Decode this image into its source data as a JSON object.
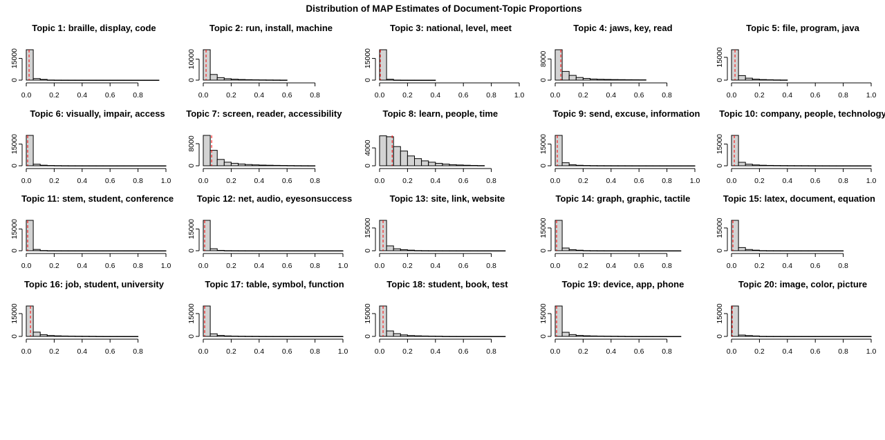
{
  "figure_title": "Distribution of MAP Estimates of Document-Topic Proportions",
  "colors": {
    "bar_fill": "#d3d3d3",
    "bar_stroke": "#000000",
    "reference_line": "#ff0000"
  },
  "chart_data": [
    {
      "type": "bar",
      "title": "Topic 1: braille, display, code",
      "x_ticks": [
        "0.0",
        "0.2",
        "0.4",
        "0.6",
        "0.8"
      ],
      "xlim": [
        0,
        0.95
      ],
      "y_ticks": [
        "0",
        "15000"
      ],
      "ylim": [
        0,
        21000
      ],
      "bin_width": 0.05,
      "counts": [
        21000,
        1100,
        500,
        90,
        35,
        20,
        15,
        12,
        10,
        10,
        8,
        7,
        6,
        5,
        4,
        4,
        3,
        2,
        1
      ],
      "mean_line": 0.02
    },
    {
      "type": "bar",
      "title": "Topic 2: run, install, machine",
      "x_ticks": [
        "0.0",
        "0.2",
        "0.4",
        "0.6",
        "0.8"
      ],
      "xlim": [
        0,
        0.95
      ],
      "y_ticks": [
        "0",
        "10000"
      ],
      "ylim": [
        0,
        14500
      ],
      "bin_width": 0.05,
      "counts": [
        14500,
        2700,
        1200,
        700,
        450,
        300,
        220,
        160,
        120,
        90,
        60,
        30
      ],
      "mean_line": 0.02
    },
    {
      "type": "bar",
      "title": "Topic 3: national, level, meet",
      "x_ticks": [
        "0.0",
        "0.2",
        "0.4",
        "0.6",
        "0.8",
        "1.0"
      ],
      "xlim": [
        0,
        1.0
      ],
      "y_ticks": [
        "0",
        "15000"
      ],
      "ylim": [
        0,
        21000
      ],
      "bin_width": 0.05,
      "counts": [
        21000,
        600,
        60,
        15,
        8,
        5,
        3,
        2
      ],
      "mean_line": 0.005
    },
    {
      "type": "bar",
      "title": "Topic 4: jaws, key, read",
      "x_ticks": [
        "0.0",
        "0.2",
        "0.4",
        "0.6",
        "0.8"
      ],
      "xlim": [
        0,
        0.95
      ],
      "y_ticks": [
        "0",
        "8000"
      ],
      "ylim": [
        0,
        11500
      ],
      "bin_width": 0.05,
      "counts": [
        11500,
        3300,
        1800,
        1000,
        650,
        420,
        320,
        260,
        220,
        190,
        160,
        140,
        120
      ],
      "mean_line": 0.04
    },
    {
      "type": "bar",
      "title": "Topic 5: file, program, java",
      "x_ticks": [
        "0.0",
        "0.2",
        "0.4",
        "0.6",
        "0.8",
        "1.0"
      ],
      "xlim": [
        0,
        1.0
      ],
      "y_ticks": [
        "0",
        "15000"
      ],
      "ylim": [
        0,
        20000
      ],
      "bin_width": 0.05,
      "counts": [
        20000,
        3000,
        1300,
        650,
        380,
        250,
        150,
        100
      ],
      "mean_line": 0.025
    },
    {
      "type": "bar",
      "title": "Topic 6: visually, impair, access",
      "x_ticks": [
        "0.0",
        "0.2",
        "0.4",
        "0.6",
        "0.8",
        "1.0"
      ],
      "xlim": [
        0,
        1.0
      ],
      "y_ticks": [
        "0",
        "15000"
      ],
      "ylim": [
        0,
        21000
      ],
      "bin_width": 0.05,
      "counts": [
        21000,
        1100,
        400,
        200,
        120,
        60,
        40,
        30,
        25,
        20,
        15,
        12,
        10,
        9,
        8,
        7,
        6,
        5,
        4,
        3
      ],
      "mean_line": 0.01
    },
    {
      "type": "bar",
      "title": "Topic 7: screen, reader, accessibility",
      "x_ticks": [
        "0.0",
        "0.2",
        "0.4",
        "0.6",
        "0.8"
      ],
      "xlim": [
        0,
        0.85
      ],
      "y_ticks": [
        "0",
        "8000"
      ],
      "ylim": [
        0,
        11000
      ],
      "bin_width": 0.05,
      "counts": [
        11000,
        5600,
        2300,
        1300,
        900,
        650,
        450,
        330,
        250,
        200,
        150,
        110,
        80,
        50,
        30,
        20
      ],
      "mean_line": 0.06
    },
    {
      "type": "bar",
      "title": "Topic 8: learn, people, time",
      "x_ticks": [
        "0.0",
        "0.2",
        "0.4",
        "0.6",
        "0.8"
      ],
      "xlim": [
        0,
        0.85
      ],
      "y_ticks": [
        "0",
        "4000"
      ],
      "ylim": [
        0,
        6800
      ],
      "bin_width": 0.05,
      "counts": [
        6700,
        6500,
        4300,
        3300,
        2200,
        1600,
        1100,
        800,
        550,
        380,
        250,
        180,
        120,
        80,
        50
      ],
      "mean_line": 0.09
    },
    {
      "type": "bar",
      "title": "Topic 9: send, excuse, information",
      "x_ticks": [
        "0.0",
        "0.2",
        "0.4",
        "0.6",
        "0.8",
        "1.0"
      ],
      "xlim": [
        0,
        1.0
      ],
      "y_ticks": [
        "0",
        "15000"
      ],
      "ylim": [
        0,
        21000
      ],
      "bin_width": 0.05,
      "counts": [
        21000,
        2100,
        700,
        350,
        200,
        120,
        90,
        70,
        55,
        45,
        35,
        30,
        25,
        20,
        15,
        12,
        10,
        8,
        6,
        5
      ],
      "mean_line": 0.015
    },
    {
      "type": "bar",
      "title": "Topic 10: company, people, technology",
      "x_ticks": [
        "0.0",
        "0.2",
        "0.4",
        "0.6",
        "0.8",
        "1.0"
      ],
      "xlim": [
        0,
        1.0
      ],
      "y_ticks": [
        "0",
        "15000"
      ],
      "ylim": [
        0,
        21000
      ],
      "bin_width": 0.05,
      "counts": [
        21000,
        2400,
        1100,
        600,
        380,
        260,
        190,
        140,
        110,
        90,
        70,
        50,
        30,
        20,
        15,
        12,
        10,
        8,
        6,
        5
      ],
      "mean_line": 0.02
    },
    {
      "type": "bar",
      "title": "Topic 11: stem, student, conference",
      "x_ticks": [
        "0.0",
        "0.2",
        "0.4",
        "0.6",
        "0.8",
        "1.0"
      ],
      "xlim": [
        0,
        1.0
      ],
      "y_ticks": [
        "0",
        "15000"
      ],
      "ylim": [
        0,
        21000
      ],
      "bin_width": 0.05,
      "counts": [
        21000,
        900,
        150,
        40,
        20,
        12,
        9,
        7,
        6,
        5,
        4,
        4,
        3,
        3,
        2,
        2,
        2,
        1,
        1,
        1
      ],
      "mean_line": 0.01
    },
    {
      "type": "bar",
      "title": "Topic 12: net, audio, eyesonsuccess",
      "x_ticks": [
        "0.0",
        "0.2",
        "0.4",
        "0.6",
        "0.8",
        "1.0"
      ],
      "xlim": [
        0,
        1.0
      ],
      "y_ticks": [
        "0",
        "15000"
      ],
      "ylim": [
        0,
        21000
      ],
      "bin_width": 0.05,
      "counts": [
        21000,
        1400,
        250,
        80,
        40,
        25,
        18,
        14,
        12,
        10,
        8,
        7,
        6,
        5,
        4,
        3,
        3,
        2,
        2,
        1
      ],
      "mean_line": 0.01
    },
    {
      "type": "bar",
      "title": "Topic 13: site, link, website",
      "x_ticks": [
        "0.0",
        "0.2",
        "0.4",
        "0.6",
        "0.8"
      ],
      "xlim": [
        0,
        0.95
      ],
      "y_ticks": [
        "0",
        "15000"
      ],
      "ylim": [
        0,
        20000
      ],
      "bin_width": 0.05,
      "counts": [
        20000,
        3200,
        1300,
        700,
        380,
        120,
        60,
        35,
        25,
        20,
        15,
        12,
        10,
        8,
        6,
        5,
        4,
        3
      ],
      "mean_line": 0.025
    },
    {
      "type": "bar",
      "title": "Topic 14: graph, graphic, tactile",
      "x_ticks": [
        "0.0",
        "0.2",
        "0.4",
        "0.6",
        "0.8"
      ],
      "xlim": [
        0,
        0.95
      ],
      "y_ticks": [
        "0",
        "15000"
      ],
      "ylim": [
        0,
        20000
      ],
      "bin_width": 0.05,
      "counts": [
        20000,
        1800,
        700,
        350,
        100,
        50,
        30,
        20,
        15,
        12,
        10,
        8,
        6,
        5,
        4,
        3,
        2,
        2
      ],
      "mean_line": 0.01
    },
    {
      "type": "bar",
      "title": "Topic 15: latex, document, equation",
      "x_ticks": [
        "0.0",
        "0.2",
        "0.4",
        "0.6",
        "0.8"
      ],
      "xlim": [
        0,
        0.95
      ],
      "y_ticks": [
        "0",
        "15000"
      ],
      "ylim": [
        0,
        20000
      ],
      "bin_width": 0.05,
      "counts": [
        20000,
        2100,
        800,
        380,
        90,
        45,
        30,
        20,
        15,
        12,
        10,
        8,
        6,
        5,
        4,
        3
      ],
      "mean_line": 0.01
    },
    {
      "type": "bar",
      "title": "Topic 16: job, student, university",
      "x_ticks": [
        "0.0",
        "0.2",
        "0.4",
        "0.6",
        "0.8"
      ],
      "xlim": [
        0,
        0.95
      ],
      "y_ticks": [
        "0",
        "15000"
      ],
      "ylim": [
        0,
        20000
      ],
      "bin_width": 0.05,
      "counts": [
        20000,
        2800,
        1100,
        600,
        380,
        260,
        190,
        140,
        110,
        80,
        30,
        15,
        10,
        8,
        6,
        5
      ],
      "mean_line": 0.03
    },
    {
      "type": "bar",
      "title": "Topic 17: table, symbol, function",
      "x_ticks": [
        "0.0",
        "0.2",
        "0.4",
        "0.6",
        "0.8",
        "1.0"
      ],
      "xlim": [
        0,
        1.0
      ],
      "y_ticks": [
        "0",
        "15000"
      ],
      "ylim": [
        0,
        20000
      ],
      "bin_width": 0.05,
      "counts": [
        20000,
        1700,
        650,
        330,
        200,
        130,
        90,
        70,
        30,
        20,
        15,
        12,
        10,
        8,
        6,
        5,
        4,
        3,
        2,
        1
      ],
      "mean_line": 0.01
    },
    {
      "type": "bar",
      "title": "Topic 18: student, book, test",
      "x_ticks": [
        "0.0",
        "0.2",
        "0.4",
        "0.6",
        "0.8"
      ],
      "xlim": [
        0,
        0.95
      ],
      "y_ticks": [
        "0",
        "15000"
      ],
      "ylim": [
        0,
        20000
      ],
      "bin_width": 0.05,
      "counts": [
        20000,
        3600,
        1800,
        1000,
        560,
        380,
        260,
        180,
        140,
        40,
        20,
        15,
        10,
        8,
        6,
        5,
        4,
        3
      ],
      "mean_line": 0.025
    },
    {
      "type": "bar",
      "title": "Topic 19: device, app, phone",
      "x_ticks": [
        "0.0",
        "0.2",
        "0.4",
        "0.6",
        "0.8"
      ],
      "xlim": [
        0,
        0.95
      ],
      "y_ticks": [
        "0",
        "15000"
      ],
      "ylim": [
        0,
        20000
      ],
      "bin_width": 0.05,
      "counts": [
        20000,
        2700,
        1200,
        650,
        420,
        300,
        220,
        170,
        130,
        90,
        30,
        20,
        15,
        12,
        10,
        8,
        6,
        5
      ],
      "mean_line": 0.01
    },
    {
      "type": "bar",
      "title": "Topic 20: image, color, picture",
      "x_ticks": [
        "0.0",
        "0.2",
        "0.4",
        "0.6",
        "0.8",
        "1.0"
      ],
      "xlim": [
        0,
        1.0
      ],
      "y_ticks": [
        "0",
        "15000"
      ],
      "ylim": [
        0,
        20000
      ],
      "bin_width": 0.05,
      "counts": [
        20000,
        900,
        550,
        300,
        60,
        30,
        20,
        15,
        12,
        10,
        8,
        6,
        5,
        4,
        3,
        3,
        2,
        2,
        1,
        1
      ],
      "mean_line": 0.005
    }
  ]
}
